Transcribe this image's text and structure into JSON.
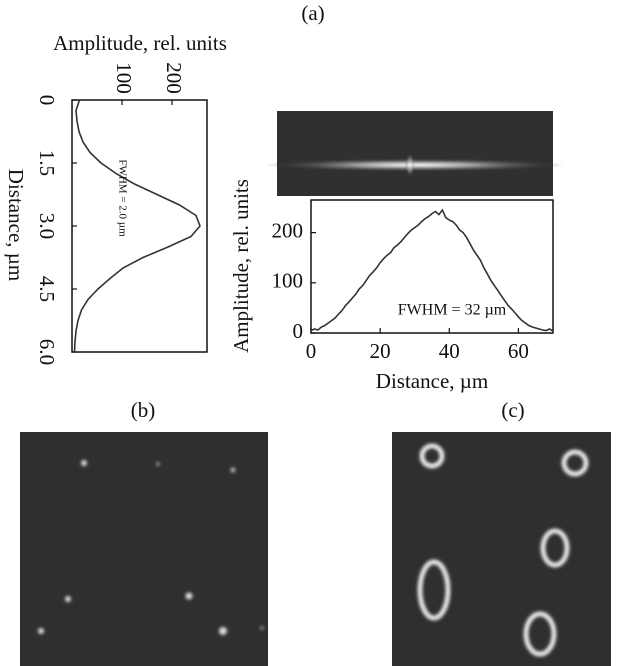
{
  "panel_labels": {
    "a": "(a)",
    "b": "(b)",
    "c": "(c)"
  },
  "chart_data": [
    {
      "type": "line",
      "x_label": "Distance, µm",
      "y_label": "Amplitude, rel. units",
      "annotation": "FWHM = 2.0 µm",
      "color": "#333333",
      "x": [
        0,
        0.25,
        0.5,
        0.75,
        1,
        1.25,
        1.5,
        1.75,
        2,
        2.25,
        2.5,
        2.75,
        3,
        3.25,
        3.5,
        3.75,
        4,
        4.25,
        4.5,
        4.75,
        5,
        5.25,
        5.5,
        5.75,
        6
      ],
      "values": [
        15,
        8,
        10,
        14,
        22,
        36,
        58,
        88,
        125,
        170,
        215,
        248,
        256,
        238,
        192,
        142,
        102,
        76,
        52,
        32,
        19,
        12,
        8,
        6,
        5
      ],
      "xlim": [
        0,
        6
      ],
      "xticks": [
        0,
        1.5,
        {
          "value": 3,
          "label": "3.0"
        },
        4.5,
        {
          "value": 6,
          "label": "6.0"
        }
      ],
      "ylim": [
        0,
        270
      ],
      "yticks": [
        100,
        200
      ]
    },
    {
      "type": "line",
      "x_label": "Distance, µm",
      "y_label": "Amplitude, rel. units",
      "annotation": "FWHM = 32 µm",
      "color": "#333333",
      "x": [
        0,
        1,
        2,
        3,
        4,
        5,
        6,
        7,
        8,
        9,
        10,
        11,
        12,
        13,
        14,
        15,
        16,
        17,
        18,
        19,
        20,
        21,
        22,
        23,
        24,
        25,
        26,
        27,
        28,
        29,
        30,
        31,
        32,
        33,
        34,
        35,
        36,
        37,
        38,
        39,
        40,
        41,
        42,
        43,
        44,
        45,
        46,
        47,
        48,
        49,
        50,
        51,
        52,
        53,
        54,
        55,
        56,
        57,
        58,
        59,
        60,
        61,
        62,
        63,
        64,
        65,
        66,
        67,
        68,
        69,
        70
      ],
      "values": [
        5,
        8,
        6,
        12,
        15,
        20,
        25,
        30,
        38,
        45,
        55,
        62,
        70,
        78,
        88,
        95,
        105,
        115,
        122,
        130,
        140,
        148,
        155,
        160,
        170,
        175,
        182,
        190,
        198,
        205,
        210,
        215,
        222,
        228,
        232,
        238,
        242,
        236,
        245,
        230,
        225,
        222,
        215,
        205,
        200,
        190,
        178,
        165,
        155,
        145,
        130,
        118,
        105,
        95,
        85,
        75,
        65,
        55,
        48,
        40,
        32,
        25,
        20,
        15,
        12,
        10,
        8,
        6,
        5,
        8,
        4
      ],
      "xlim": [
        0,
        70
      ],
      "xticks": [
        0,
        20,
        40,
        60
      ],
      "ylim": [
        0,
        265
      ],
      "yticks": [
        0,
        100,
        200
      ]
    }
  ]
}
